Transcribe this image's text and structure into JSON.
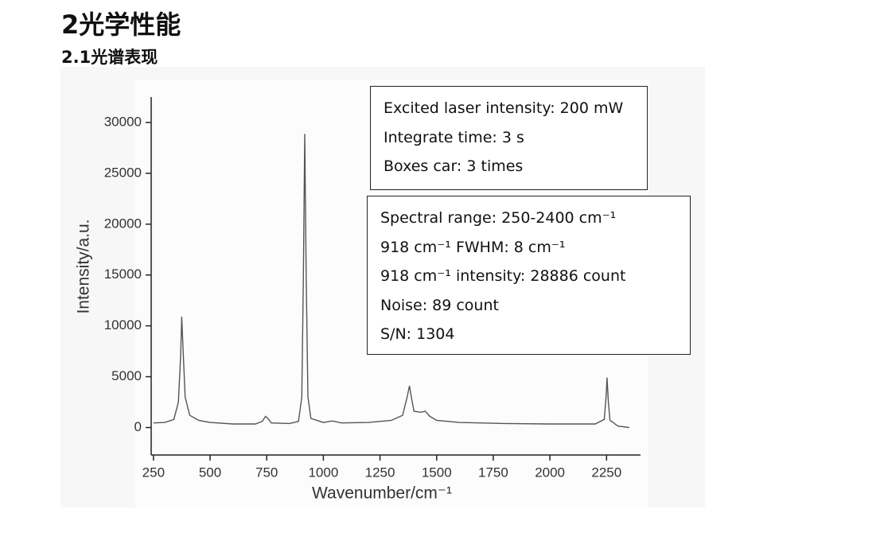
{
  "header": {
    "title": "2光学性能",
    "subtitle": "2.1光谱表现"
  },
  "chart_data": {
    "type": "line",
    "x_label": "Wavenumber/cm⁻¹",
    "y_label": "Intensity/a.u.",
    "color": "#555555",
    "x": [
      250,
      300,
      340,
      360,
      370,
      375,
      380,
      390,
      410,
      450,
      500,
      600,
      700,
      730,
      745,
      755,
      770,
      850,
      890,
      905,
      912,
      918,
      924,
      932,
      945,
      1000,
      1040,
      1080,
      1200,
      1300,
      1350,
      1370,
      1380,
      1390,
      1400,
      1430,
      1450,
      1470,
      1500,
      1600,
      1800,
      2000,
      2200,
      2240,
      2248,
      2252,
      2258,
      2265,
      2280,
      2290,
      2300,
      2350
    ],
    "values": [
      450,
      500,
      800,
      2500,
      7000,
      10900,
      8000,
      3000,
      1200,
      700,
      500,
      350,
      350,
      600,
      1100,
      900,
      450,
      400,
      600,
      3000,
      15000,
      28886,
      15000,
      3000,
      900,
      500,
      650,
      450,
      500,
      700,
      1200,
      3000,
      4100,
      2800,
      1600,
      1500,
      1600,
      1100,
      700,
      500,
      400,
      350,
      350,
      800,
      3000,
      4900,
      2500,
      700,
      500,
      300,
      150,
      0
    ],
    "xlim": [
      240,
      2400
    ],
    "ylim": [
      -2700,
      32500
    ],
    "xticks": [
      250,
      500,
      750,
      1000,
      1250,
      1500,
      1750,
      2000,
      2250
    ],
    "yticks": [
      0,
      5000,
      10000,
      15000,
      20000,
      25000,
      30000
    ],
    "annotations": [
      [
        "Excited laser intensity: 200 mW",
        "Integrate time: 3 s",
        "Boxes car: 3 times"
      ],
      [
        "Spectral range: 250-2400 cm⁻¹",
        "918 cm⁻¹ FWHM: 8 cm⁻¹",
        "918 cm⁻¹ intensity: 28886 count",
        "Noise: 89 count",
        "S/N: 1304"
      ]
    ]
  }
}
